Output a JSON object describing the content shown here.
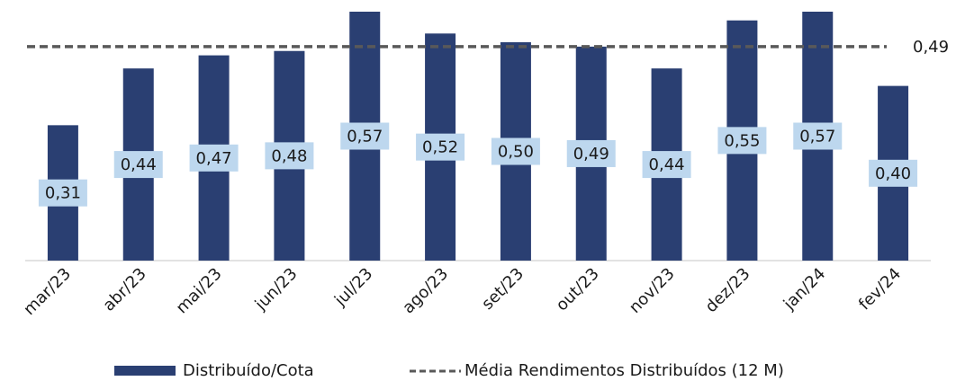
{
  "chart_data": {
    "type": "bar",
    "categories": [
      "mar/23",
      "abr/23",
      "mai/23",
      "jun/23",
      "jul/23",
      "ago/23",
      "set/23",
      "out/23",
      "nov/23",
      "dez/23",
      "jan/24",
      "fev/24"
    ],
    "series": [
      {
        "name": "Distribuído/Cota",
        "color": "#2a3f72",
        "values": [
          0.31,
          0.44,
          0.47,
          0.48,
          0.57,
          0.52,
          0.5,
          0.49,
          0.44,
          0.55,
          0.57,
          0.4
        ],
        "value_labels": [
          "0,31",
          "0,44",
          "0,47",
          "0,48",
          "0,57",
          "0,52",
          "0,50",
          "0,49",
          "0,44",
          "0,55",
          "0,57",
          "0,40"
        ]
      }
    ],
    "average": {
      "name": "Média Rendimentos Distribuídos (12 M)",
      "color": "#595959",
      "value": 0.49,
      "value_label": "0,49"
    },
    "ylim": [
      0,
      0.57
    ],
    "label_color": "#bdd7ee"
  }
}
